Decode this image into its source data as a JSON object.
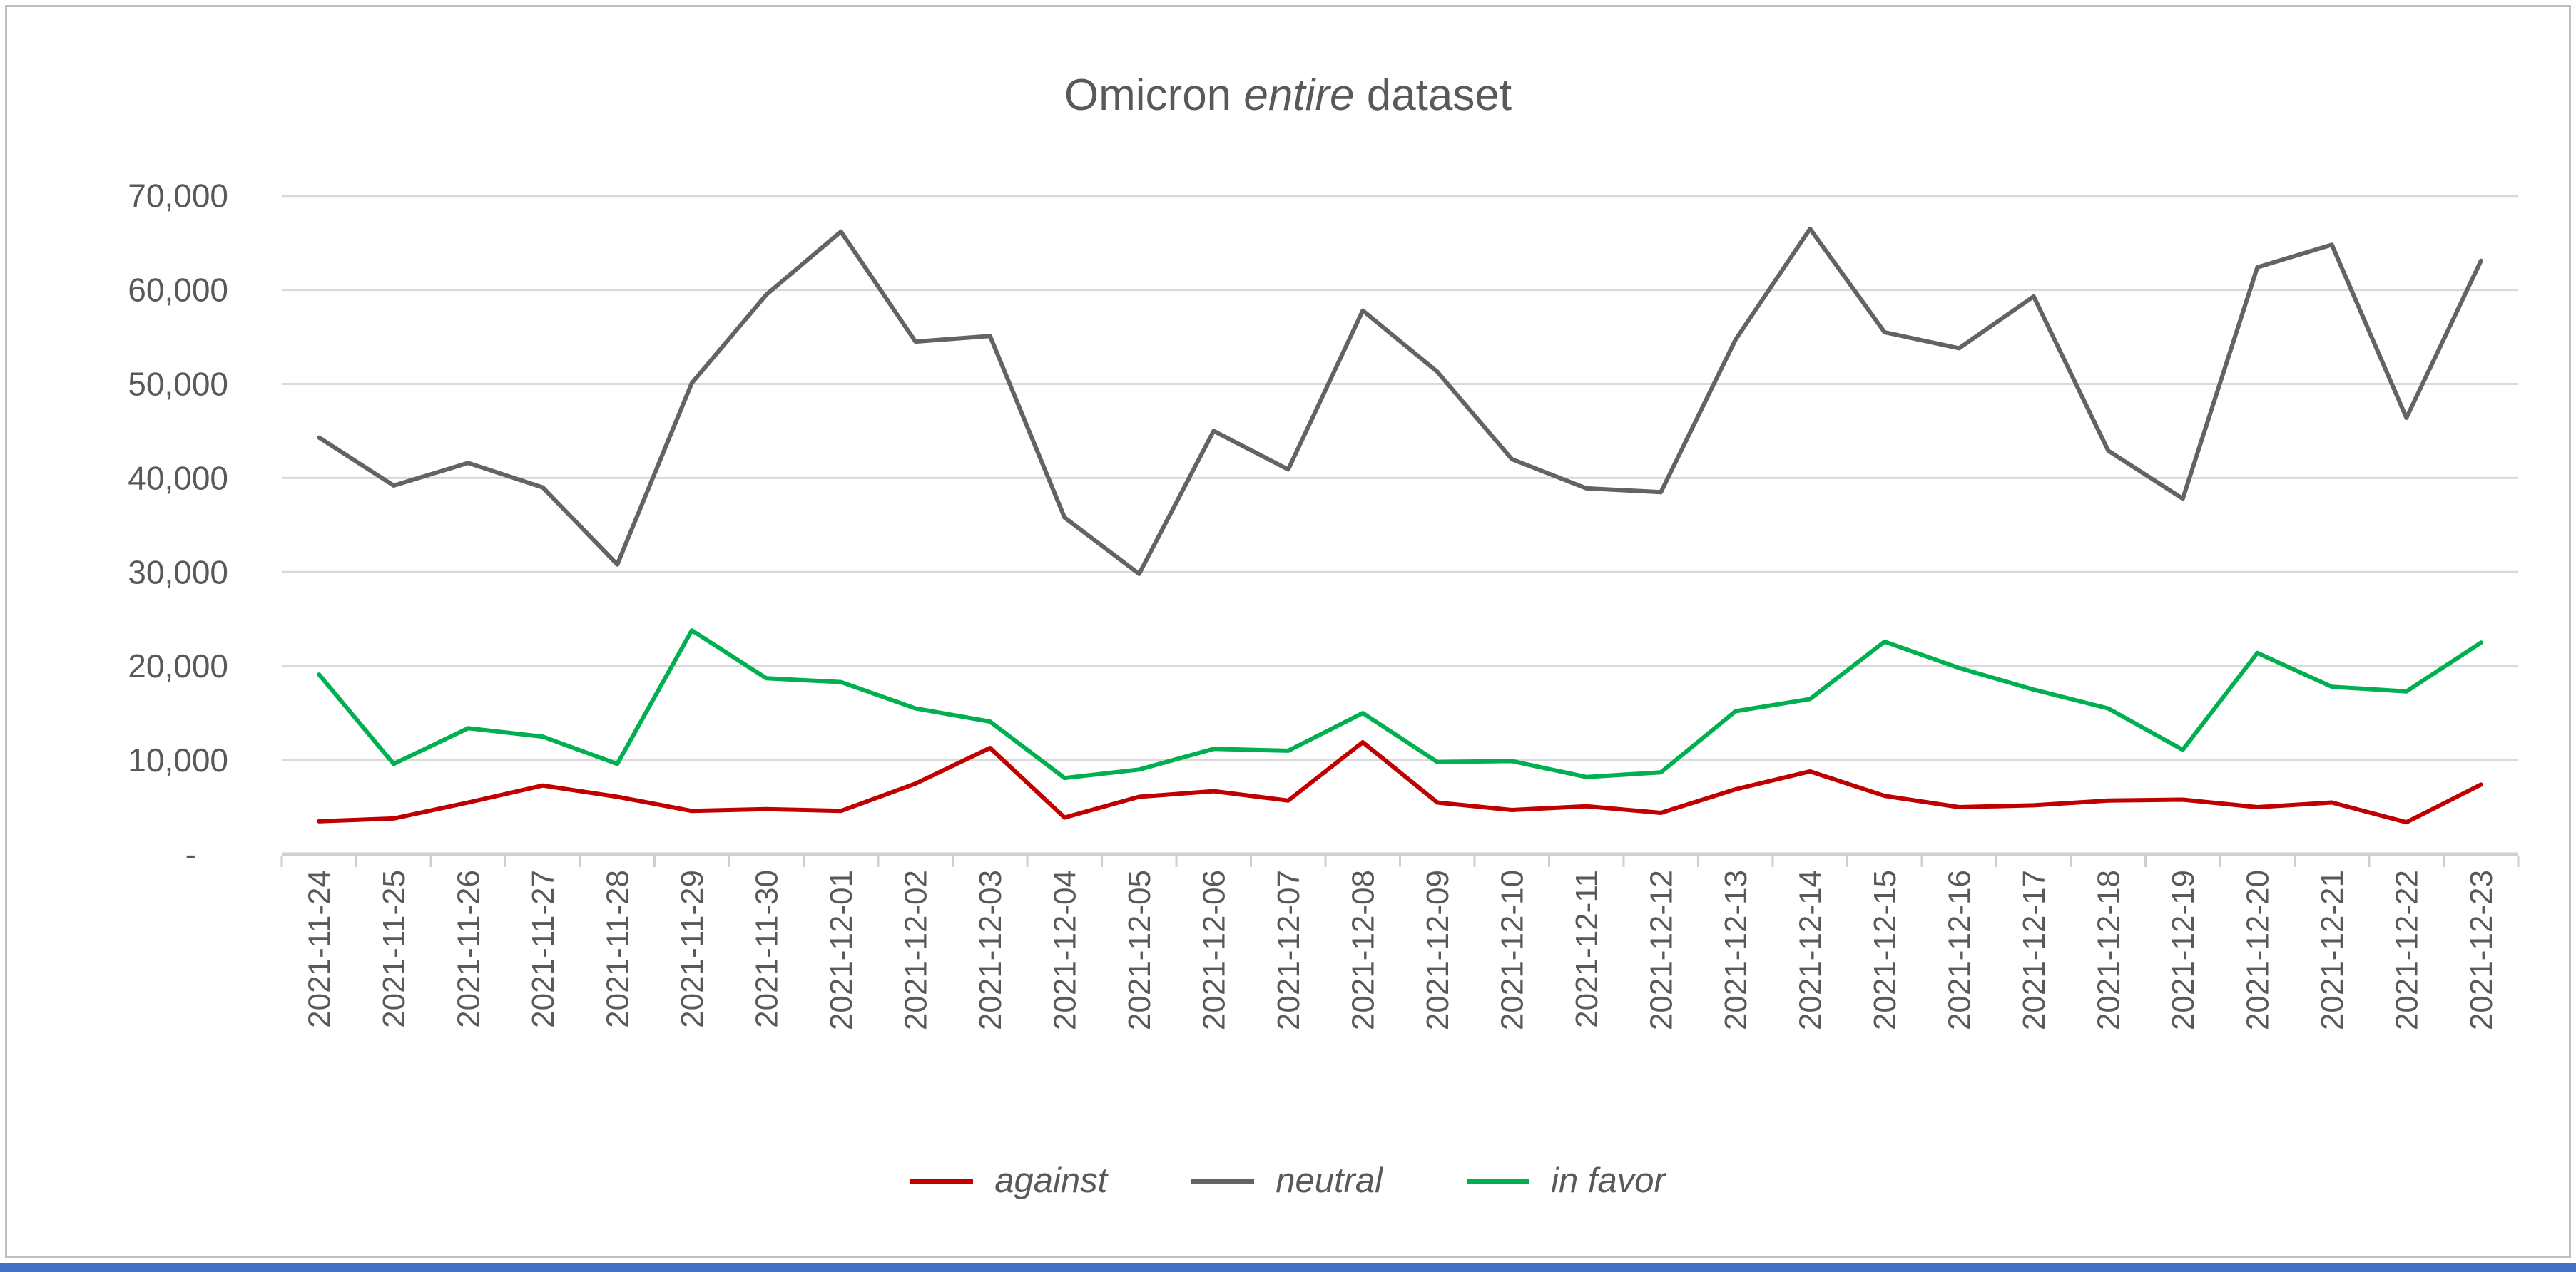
{
  "page": {
    "background": "#FFFFFF",
    "frame_border_color": "#BFBFBF",
    "bottom_strip_color": "#4472C4"
  },
  "chart_data": {
    "type": "line",
    "title": "Omicron entire dataset",
    "title_parts": {
      "prefix": "Omicron ",
      "italic": "entire",
      "suffix": " dataset"
    },
    "xlabel": "",
    "ylabel": "",
    "ylim": [
      0,
      70000
    ],
    "grid": "horizontal-only",
    "legend_position": "bottom-center",
    "axis_text_color": "#595959",
    "gridline_color": "#D9D9D9",
    "axis_line_color": "#CFCFCF",
    "y_ticks": [
      {
        "label": "70,000",
        "value": 70000
      },
      {
        "label": "60,000",
        "value": 60000
      },
      {
        "label": "50,000",
        "value": 50000
      },
      {
        "label": "40,000",
        "value": 40000
      },
      {
        "label": "30,000",
        "value": 30000
      },
      {
        "label": "20,000",
        "value": 20000
      },
      {
        "label": "10,000",
        "value": 10000
      },
      {
        "label": "-",
        "value": 0
      }
    ],
    "categories": [
      "2021-11-24",
      "2021-11-25",
      "2021-11-26",
      "2021-11-27",
      "2021-11-28",
      "2021-11-29",
      "2021-11-30",
      "2021-12-01",
      "2021-12-02",
      "2021-12-03",
      "2021-12-04",
      "2021-12-05",
      "2021-12-06",
      "2021-12-07",
      "2021-12-08",
      "2021-12-09",
      "2021-12-10",
      "2021-12-11",
      "2021-12-12",
      "2021-12-13",
      "2021-12-14",
      "2021-12-15",
      "2021-12-16",
      "2021-12-17",
      "2021-12-18",
      "2021-12-19",
      "2021-12-20",
      "2021-12-21",
      "2021-12-22",
      "2021-12-23"
    ],
    "series": [
      {
        "name": "against",
        "color": "#C00000",
        "values": [
          3500,
          3800,
          5500,
          7300,
          6100,
          4600,
          4800,
          4600,
          7500,
          11300,
          3900,
          6100,
          6700,
          5700,
          11900,
          5500,
          4700,
          5100,
          4400,
          6900,
          8800,
          6200,
          5000,
          5200,
          5700,
          5800,
          5000,
          5500,
          3400,
          7400
        ]
      },
      {
        "name": "neutral",
        "color": "#636363",
        "values": [
          44300,
          39200,
          41600,
          39000,
          30800,
          50100,
          59500,
          66200,
          54500,
          55100,
          35800,
          29800,
          45000,
          40900,
          57800,
          51300,
          42000,
          38900,
          38500,
          54700,
          66500,
          55500,
          53800,
          59300,
          42900,
          37800,
          62400,
          64800,
          46400,
          63100
        ]
      },
      {
        "name": "in favor",
        "color": "#00B050",
        "values": [
          19100,
          9600,
          13400,
          12500,
          9600,
          23800,
          18700,
          18300,
          15500,
          14100,
          8100,
          9000,
          11200,
          11000,
          15000,
          9800,
          9900,
          8200,
          8700,
          15200,
          16500,
          22600,
          19800,
          17500,
          15500,
          11100,
          21400,
          17800,
          17300,
          22500
        ]
      }
    ]
  }
}
